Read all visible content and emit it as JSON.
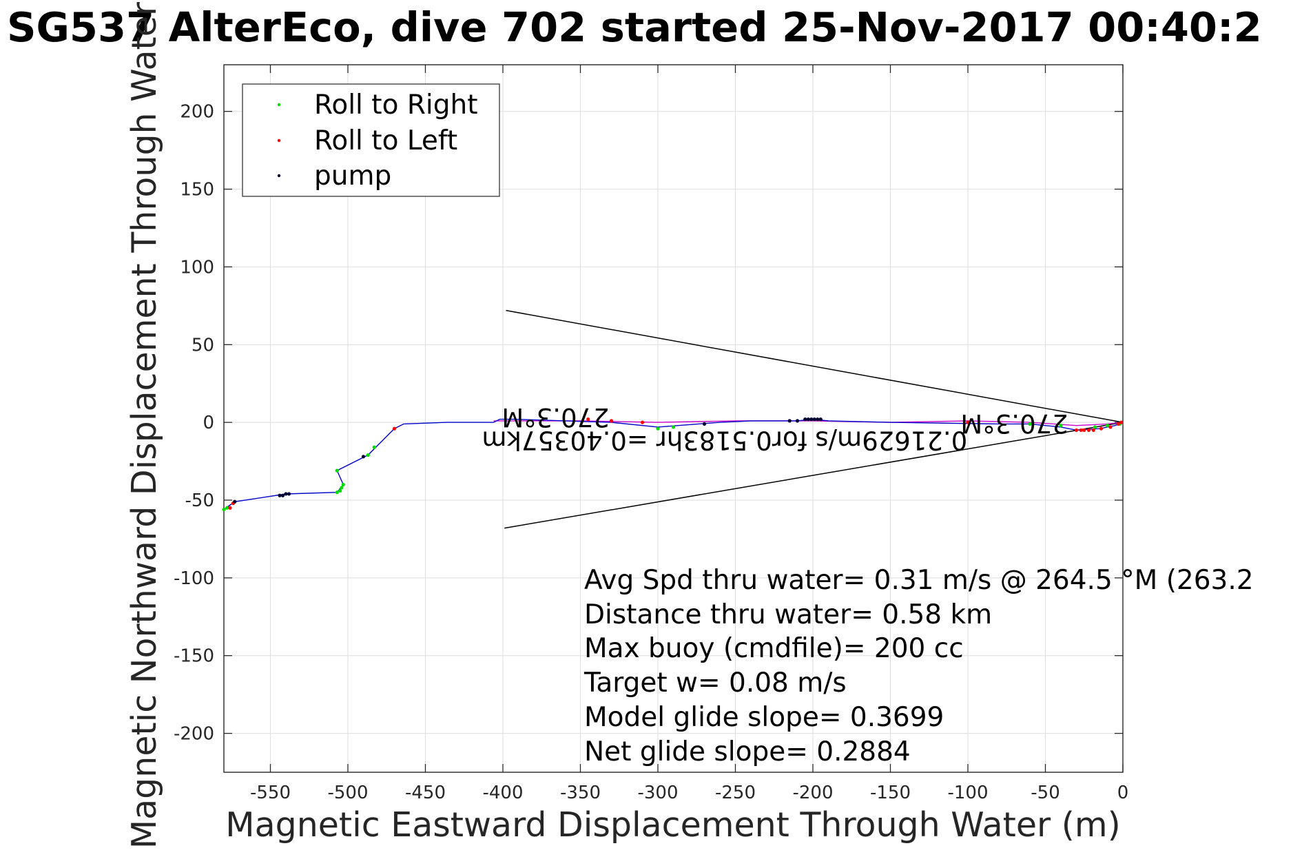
{
  "chart_data": {
    "type": "scatter",
    "title": "SG537 AlterEco, dive 702 started 25-Nov-2017 00:40:2",
    "xlabel": "Magnetic Eastward Displacement Through Water (m)",
    "ylabel": "Magnetic Northward Displacement Through Water(",
    "xlim": [
      -580,
      0
    ],
    "ylim": [
      -225,
      230
    ],
    "grid": true,
    "legend_position": "top-left",
    "x_ticks": [
      -550,
      -500,
      -450,
      -400,
      -350,
      -300,
      -250,
      -200,
      -150,
      -100,
      -50,
      0
    ],
    "x_tick_labels": [
      "-550",
      "-500",
      "-450",
      "-400",
      "-350",
      "-300",
      "-250",
      "-200",
      "-150",
      "-100",
      "-50",
      "0"
    ],
    "y_ticks": [
      200,
      150,
      100,
      50,
      0,
      -50,
      -100,
      -150,
      -200
    ],
    "y_tick_labels": [
      "200",
      "150",
      "100",
      "50",
      "0",
      "-50",
      "-100",
      "-150",
      "-200"
    ],
    "series": [
      {
        "name": "Roll to Right",
        "color": "#00dd00",
        "points": [
          [
            -580,
            -56
          ],
          [
            -578,
            -55
          ],
          [
            -507,
            -45
          ],
          [
            -505,
            -44
          ],
          [
            -504,
            -42
          ],
          [
            -503,
            -40
          ],
          [
            -507,
            -31
          ],
          [
            -483,
            -16
          ],
          [
            -487,
            -21
          ],
          [
            -300,
            -4
          ],
          [
            -290,
            -3
          ],
          [
            -60,
            -1
          ],
          [
            -40,
            -2
          ],
          [
            -18,
            -3
          ],
          [
            -10,
            -2
          ],
          [
            -2,
            -1
          ]
        ]
      },
      {
        "name": "Roll to Left",
        "color": "#ff0000",
        "points": [
          [
            -576,
            -55
          ],
          [
            -574,
            -52
          ],
          [
            -470,
            -4
          ],
          [
            -345,
            2
          ],
          [
            -330,
            1
          ],
          [
            -310,
            0
          ],
          [
            -100,
            0
          ],
          [
            -30,
            -5
          ],
          [
            -27,
            -5
          ],
          [
            -25,
            -5
          ],
          [
            -22,
            -5
          ],
          [
            -19,
            -5
          ],
          [
            -14,
            -4
          ],
          [
            -8,
            -3
          ],
          [
            -3,
            -1
          ],
          [
            -1,
            0
          ]
        ]
      },
      {
        "name": "pump",
        "color": "#000033",
        "points": [
          [
            -573,
            -51
          ],
          [
            -544,
            -47
          ],
          [
            -542,
            -47
          ],
          [
            -540,
            -46
          ],
          [
            -538,
            -46
          ],
          [
            -490,
            -22
          ],
          [
            -270,
            -1
          ],
          [
            -215,
            1
          ],
          [
            -210,
            1
          ],
          [
            -205,
            2
          ],
          [
            -203,
            2
          ],
          [
            -201,
            2
          ],
          [
            -199,
            2
          ],
          [
            -197,
            2
          ],
          [
            -195,
            2
          ]
        ]
      }
    ],
    "track": {
      "name": "track",
      "color": "#0000cc",
      "points": [
        [
          -580,
          -56
        ],
        [
          -573,
          -51
        ],
        [
          -540,
          -46
        ],
        [
          -507,
          -45
        ],
        [
          -503,
          -40
        ],
        [
          -507,
          -31
        ],
        [
          -487,
          -21
        ],
        [
          -470,
          -4
        ],
        [
          -464,
          -1
        ],
        [
          -436,
          0
        ],
        [
          -406,
          0
        ],
        [
          -402,
          2
        ],
        [
          -392,
          2
        ],
        [
          -330,
          0
        ],
        [
          -300,
          -3
        ],
        [
          -260,
          0
        ],
        [
          -240,
          1
        ],
        [
          -210,
          1
        ],
        [
          -200,
          2
        ],
        [
          -190,
          1
        ],
        [
          -150,
          0
        ],
        [
          -80,
          -1
        ],
        [
          -60,
          -1
        ],
        [
          -40,
          -3
        ],
        [
          -30,
          -5
        ],
        [
          -15,
          -4
        ],
        [
          -5,
          -2
        ],
        [
          0,
          0
        ]
      ]
    },
    "track2": {
      "name": "track2",
      "color": "#cc00cc",
      "points": [
        [
          -406,
          1
        ],
        [
          -392,
          1
        ],
        [
          -350,
          1
        ],
        [
          -300,
          0
        ],
        [
          -250,
          1
        ],
        [
          -200,
          1
        ],
        [
          -150,
          0
        ],
        [
          -100,
          1
        ],
        [
          -60,
          0
        ],
        [
          -30,
          -2
        ],
        [
          -10,
          -1
        ],
        [
          0,
          0
        ]
      ]
    },
    "wedge": {
      "color": "#000000",
      "lines": [
        [
          [
            -398,
            72
          ],
          [
            0,
            0
          ]
        ],
        [
          [
            -399,
            -68
          ],
          [
            0,
            0
          ]
        ]
      ]
    },
    "annotations": {
      "current_far_label": "270.3°M",
      "current_far_pos": [
        -366,
        9
      ],
      "current_near_label": "270.3°M",
      "current_near_pos": [
        -70,
        5
      ],
      "current_speed_label": "0.21629m/s for0.5183hr =0.40357km",
      "current_speed_pos": [
        -257,
        -6
      ]
    },
    "info_lines": [
      "Avg Spd thru water=  0.31 m/s @ 264.5 °M (263.2",
      "Distance thru water=  0.58 km",
      "Max buoy (cmdfile)= 200 cc",
      "Target w= 0.08 m/s",
      "Model glide slope= 0.3699",
      "Net glide slope= 0.2884"
    ]
  },
  "colors": {
    "axis": "#262626",
    "grid": "#dedede",
    "text": "#000000"
  }
}
